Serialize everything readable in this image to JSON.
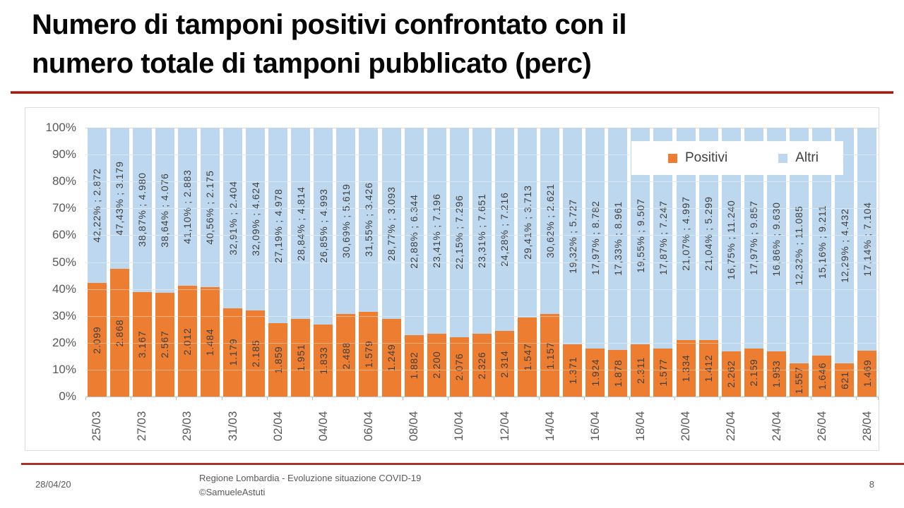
{
  "slide": {
    "title_lines": [
      "Numero di tamponi positivi confrontato con il",
      "numero totale di tamponi pubblicato (perc)"
    ],
    "footer": {
      "date": "28/04/20",
      "credit_line1": "Regione Lombardia - Evoluzione situazione COVID-19",
      "credit_line2": "©SamueleAstuti",
      "page_number": "8"
    }
  },
  "chart_data": {
    "type": "bar",
    "stacked": true,
    "normalized_to_percent": true,
    "ylim": [
      0,
      100
    ],
    "y_ticks": [
      "100%",
      "90%",
      "80%",
      "70%",
      "60%",
      "50%",
      "40%",
      "30%",
      "20%",
      "10%",
      "0%"
    ],
    "grid": true,
    "legend_position": "inside-top-right",
    "legend": [
      {
        "label": "Positivi",
        "color": "#ed7d31"
      },
      {
        "label": "Altri",
        "color": "#bdd7ee"
      }
    ],
    "x_ticks_shown": [
      "25/03",
      "27/03",
      "29/03",
      "31/03",
      "02/04",
      "04/04",
      "06/04",
      "08/04",
      "10/04",
      "12/04",
      "14/04",
      "16/04",
      "18/04",
      "20/04",
      "22/04",
      "24/04",
      "26/04",
      "28/04"
    ],
    "bar_label_format": "blue segment: '<pct>% ; <altri>' , orange segment: '<positivi>'",
    "bars": [
      {
        "date": "25/03",
        "pct": 42.22,
        "positivi_label": "2.099",
        "altri_label": "2.872"
      },
      {
        "date": "26/03",
        "pct": 47.43,
        "positivi_label": "2.868",
        "altri_label": "3.179"
      },
      {
        "date": "27/03",
        "pct": 38.87,
        "positivi_label": "3.167",
        "altri_label": "4.980"
      },
      {
        "date": "28/03",
        "pct": 38.64,
        "positivi_label": "2.567",
        "altri_label": "4.076"
      },
      {
        "date": "29/03",
        "pct": 41.1,
        "positivi_label": "2.012",
        "altri_label": "2.883"
      },
      {
        "date": "30/03",
        "pct": 40.56,
        "positivi_label": "1.484",
        "altri_label": "2.175"
      },
      {
        "date": "31/03",
        "pct": 32.91,
        "positivi_label": "1.179",
        "altri_label": "2.404"
      },
      {
        "date": "01/04",
        "pct": 32.09,
        "positivi_label": "2.185",
        "altri_label": "4.624"
      },
      {
        "date": "02/04",
        "pct": 27.19,
        "positivi_label": "1.859",
        "altri_label": "4.978"
      },
      {
        "date": "03/04",
        "pct": 28.84,
        "positivi_label": "1.951",
        "altri_label": "4.814"
      },
      {
        "date": "04/04",
        "pct": 26.85,
        "positivi_label": "1.833",
        "altri_label": "4.993"
      },
      {
        "date": "05/04",
        "pct": 30.69,
        "positivi_label": "2.488",
        "altri_label": "5.619"
      },
      {
        "date": "06/04",
        "pct": 31.55,
        "positivi_label": "1.579",
        "altri_label": "3.426"
      },
      {
        "date": "07/04",
        "pct": 28.77,
        "positivi_label": "1.249",
        "altri_label": "3.093"
      },
      {
        "date": "08/04",
        "pct": 22.88,
        "positivi_label": "1.882",
        "altri_label": "6.344"
      },
      {
        "date": "09/04",
        "pct": 23.41,
        "positivi_label": "2.200",
        "altri_label": "7.196"
      },
      {
        "date": "10/04",
        "pct": 22.15,
        "positivi_label": "2.076",
        "altri_label": "7.296"
      },
      {
        "date": "11/04",
        "pct": 23.31,
        "positivi_label": "2.326",
        "altri_label": "7.651"
      },
      {
        "date": "12/04",
        "pct": 24.28,
        "positivi_label": "2.314",
        "altri_label": "7.216"
      },
      {
        "date": "13/04",
        "pct": 29.41,
        "positivi_label": "1.547",
        "altri_label": "3.713"
      },
      {
        "date": "14/04",
        "pct": 30.62,
        "positivi_label": "1.157",
        "altri_label": "2.621"
      },
      {
        "date": "15/04",
        "pct": 19.32,
        "positivi_label": "1.371",
        "altri_label": "5.727"
      },
      {
        "date": "16/04",
        "pct": 17.97,
        "positivi_label": "1.924",
        "altri_label": "8.782"
      },
      {
        "date": "17/04",
        "pct": 17.33,
        "positivi_label": "1.878",
        "altri_label": "8.961"
      },
      {
        "date": "18/04",
        "pct": 19.55,
        "positivi_label": "2.311",
        "altri_label": "9.507"
      },
      {
        "date": "19/04",
        "pct": 17.87,
        "positivi_label": "1.577",
        "altri_label": "7.247"
      },
      {
        "date": "20/04",
        "pct": 21.07,
        "positivi_label": "1.334",
        "altri_label": "4.997"
      },
      {
        "date": "21/04",
        "pct": 21.04,
        "positivi_label": "1.412",
        "altri_label": "5.299"
      },
      {
        "date": "22/04",
        "pct": 16.75,
        "positivi_label": "2.262",
        "altri_label": "11.240"
      },
      {
        "date": "23/04",
        "pct": 17.97,
        "positivi_label": "2.159",
        "altri_label": "9.857"
      },
      {
        "date": "24/04",
        "pct": 16.86,
        "positivi_label": "1.953",
        "altri_label": "9.630"
      },
      {
        "date": "25/04",
        "pct": 12.32,
        "positivi_label": "1.557",
        "altri_label": "11.085"
      },
      {
        "date": "26/04",
        "pct": 15.16,
        "positivi_label": "1.646",
        "altri_label": "9.211"
      },
      {
        "date": "27/04",
        "pct": 12.29,
        "positivi_label": "621",
        "altri_label": "4.432"
      },
      {
        "date": "28/04",
        "pct": 17.14,
        "positivi_label": "1.469",
        "altri_label": "7.104"
      }
    ]
  }
}
